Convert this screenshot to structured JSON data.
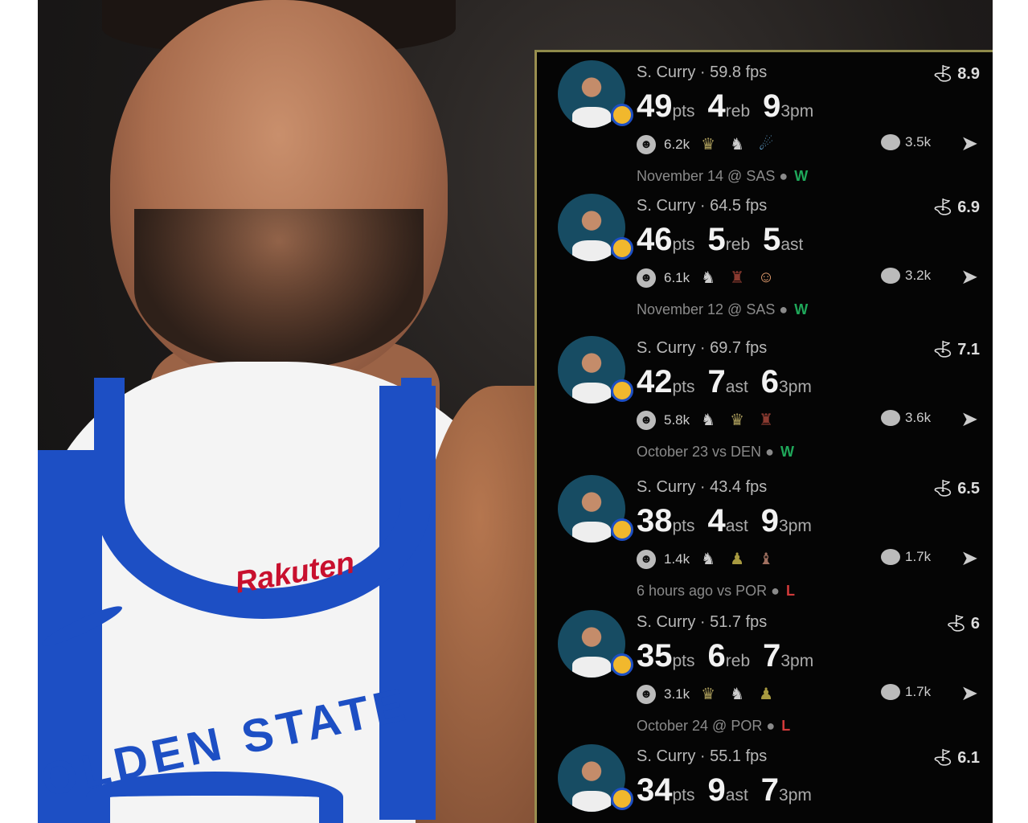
{
  "photo": {
    "sponsor": "Rakuten",
    "jersey_text": "OLDEN STATE"
  },
  "colors": {
    "win": "#1fa85a",
    "loss": "#d23a3a",
    "panel_border": "#9a8f50"
  },
  "posts": [
    {
      "name": "S. Curry · 59.8 fps",
      "score": "8.9",
      "stats": [
        {
          "n": "49",
          "u": "pts"
        },
        {
          "n": "4",
          "u": "reb"
        },
        {
          "n": "9",
          "u": "3pm"
        }
      ],
      "reactions": "6.2k",
      "emojis": [
        "chef-icon",
        "goat-icon",
        "comet-icon"
      ],
      "comments": "3.5k",
      "date": "November 14 @ SAS",
      "team_icon": "spurs-icon",
      "result": "W"
    },
    {
      "name": "S. Curry · 64.5 fps",
      "score": "6.9",
      "stats": [
        {
          "n": "46",
          "u": "pts"
        },
        {
          "n": "5",
          "u": "reb"
        },
        {
          "n": "5",
          "u": "ast"
        }
      ],
      "reactions": "6.1k",
      "emojis": [
        "goat-icon",
        "chair-icon",
        "clown-icon"
      ],
      "comments": "3.2k",
      "date": "November 12 @ SAS",
      "team_icon": "spurs-icon",
      "result": "W"
    },
    {
      "name": "S. Curry · 69.7 fps",
      "score": "7.1",
      "stats": [
        {
          "n": "42",
          "u": "pts"
        },
        {
          "n": "7",
          "u": "ast"
        },
        {
          "n": "6",
          "u": "3pm"
        }
      ],
      "reactions": "5.8k",
      "emojis": [
        "goat-icon",
        "chef-icon",
        "chair-icon"
      ],
      "comments": "3.6k",
      "date": "October 23 vs DEN",
      "team_icon": "nuggets-icon",
      "result": "W"
    },
    {
      "name": "S. Curry · 43.4 fps",
      "score": "6.5",
      "stats": [
        {
          "n": "38",
          "u": "pts"
        },
        {
          "n": "4",
          "u": "ast"
        },
        {
          "n": "9",
          "u": "3pm"
        }
      ],
      "reactions": "1.4k",
      "emojis": [
        "goat-icon",
        "person-bowing-icon",
        "person-lying-icon"
      ],
      "comments": "1.7k",
      "date": "6 hours ago vs POR",
      "team_icon": "blazers-icon",
      "result": "L"
    },
    {
      "name": "S. Curry · 51.7 fps",
      "score": "6",
      "stats": [
        {
          "n": "35",
          "u": "pts"
        },
        {
          "n": "6",
          "u": "reb"
        },
        {
          "n": "7",
          "u": "3pm"
        }
      ],
      "reactions": "3.1k",
      "emojis": [
        "chef-icon",
        "goat-icon",
        "person-bowing-icon"
      ],
      "comments": "1.7k",
      "date": "October 24 @ POR",
      "team_icon": "blazers-icon",
      "result": "L"
    },
    {
      "name": "S. Curry · 55.1 fps",
      "score": "6.1",
      "stats": [
        {
          "n": "34",
          "u": "pts"
        },
        {
          "n": "9",
          "u": "ast"
        },
        {
          "n": "7",
          "u": "3pm"
        }
      ],
      "reactions": "",
      "emojis": [],
      "comments": "",
      "date": "",
      "result": ""
    }
  ]
}
